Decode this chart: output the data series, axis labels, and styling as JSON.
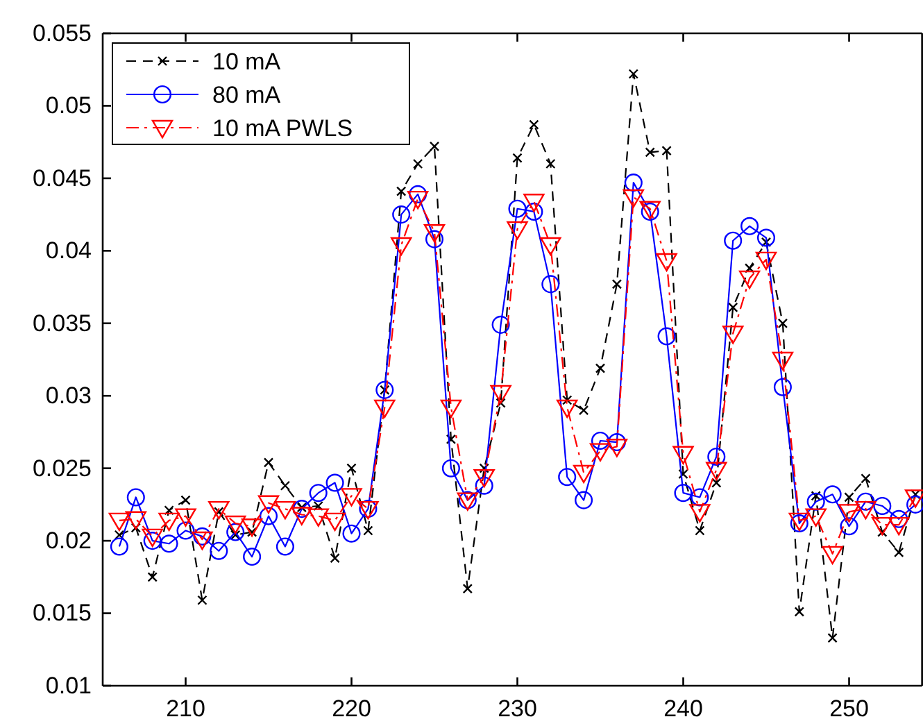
{
  "chart_data": {
    "type": "line",
    "x": [
      206,
      207,
      208,
      209,
      210,
      211,
      212,
      213,
      214,
      215,
      216,
      217,
      218,
      219,
      220,
      221,
      222,
      223,
      224,
      225,
      226,
      227,
      228,
      229,
      230,
      231,
      232,
      233,
      234,
      235,
      236,
      237,
      238,
      239,
      240,
      241,
      242,
      243,
      244,
      245,
      246,
      247,
      248,
      249,
      250,
      251,
      252,
      253,
      254
    ],
    "xlim": [
      205,
      254.4
    ],
    "xticks": [
      210,
      220,
      230,
      240,
      250
    ],
    "ylim": [
      0.01,
      0.055
    ],
    "yticks": [
      0.01,
      0.015,
      0.02,
      0.025,
      0.03,
      0.035,
      0.04,
      0.045,
      0.05,
      0.055
    ],
    "legend": "top left",
    "grid": false,
    "series": [
      {
        "name": "10 mA",
        "color": "#000000",
        "marker": "cross",
        "line_style": "dashed",
        "values": [
          0.0204,
          0.0209,
          0.0175,
          0.0221,
          0.0228,
          0.0159,
          0.022,
          0.0204,
          0.0206,
          0.0254,
          0.0238,
          0.0223,
          0.0224,
          0.0188,
          0.025,
          0.0207,
          0.0304,
          0.0441,
          0.046,
          0.0472,
          0.027,
          0.0167,
          0.025,
          0.0295,
          0.0464,
          0.0487,
          0.046,
          0.0297,
          0.029,
          0.0319,
          0.0377,
          0.0522,
          0.0468,
          0.0469,
          0.0246,
          0.0207,
          0.024,
          0.0361,
          0.0388,
          0.0406,
          0.035,
          0.0151,
          0.0231,
          0.0133,
          0.023,
          0.0243,
          0.0206,
          0.0192,
          0.0232
        ]
      },
      {
        "name": "80 mA",
        "color": "#0000ff",
        "marker": "circle",
        "line_style": "solid",
        "values": [
          0.0196,
          0.023,
          0.02,
          0.0198,
          0.0207,
          0.0203,
          0.0193,
          0.0206,
          0.0189,
          0.0217,
          0.0196,
          0.0222,
          0.0233,
          0.024,
          0.0205,
          0.0222,
          0.0304,
          0.0425,
          0.0439,
          0.0408,
          0.025,
          0.0228,
          0.0238,
          0.0349,
          0.0429,
          0.0427,
          0.0377,
          0.0244,
          0.0228,
          0.0269,
          0.0268,
          0.0447,
          0.0427,
          0.0341,
          0.0233,
          0.023,
          0.0258,
          0.0407,
          0.0417,
          0.0409,
          0.0306,
          0.0212,
          0.0227,
          0.0232,
          0.021,
          0.0227,
          0.0224,
          0.0215,
          0.0225
        ]
      },
      {
        "name": "10 mA PWLS",
        "color": "#ff0000",
        "marker": "triangle",
        "line_style": "dashdot",
        "values": [
          0.0214,
          0.0215,
          0.0203,
          0.0214,
          0.0217,
          0.0201,
          0.0222,
          0.0212,
          0.021,
          0.0226,
          0.0222,
          0.0218,
          0.0217,
          0.0214,
          0.0231,
          0.0222,
          0.0292,
          0.0404,
          0.0436,
          0.0413,
          0.0292,
          0.0228,
          0.0244,
          0.0302,
          0.0415,
          0.0434,
          0.0404,
          0.0292,
          0.0247,
          0.0262,
          0.0265,
          0.0437,
          0.0429,
          0.0393,
          0.026,
          0.022,
          0.0249,
          0.0343,
          0.0381,
          0.0394,
          0.0325,
          0.0214,
          0.0217,
          0.0191,
          0.022,
          0.0222,
          0.0211,
          0.0211,
          0.023
        ]
      }
    ]
  }
}
